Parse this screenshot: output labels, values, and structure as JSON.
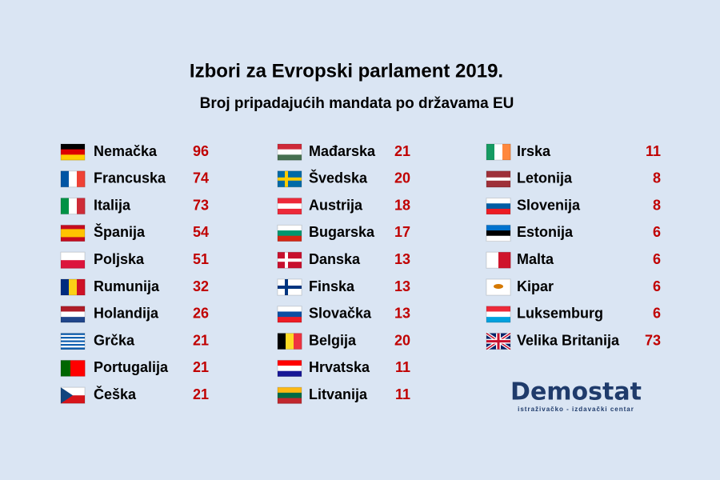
{
  "header": {
    "title": "Izbori za Evropski parlament 2019.",
    "subtitle": "Broj pripadajućih mandata po državama EU"
  },
  "columns": [
    {
      "rows": [
        {
          "name": "Nemačka",
          "seats": 96
        },
        {
          "name": "Francuska",
          "seats": 74
        },
        {
          "name": "Italija",
          "seats": 73
        },
        {
          "name": "Španija",
          "seats": 54
        },
        {
          "name": "Poljska",
          "seats": 51
        },
        {
          "name": "Rumunija",
          "seats": 32
        },
        {
          "name": "Holandija",
          "seats": 26
        },
        {
          "name": "Grčka",
          "seats": 21
        },
        {
          "name": "Portugalija",
          "seats": 21
        },
        {
          "name": "Češka",
          "seats": 21
        }
      ]
    },
    {
      "rows": [
        {
          "name": "Mađarska",
          "seats": 21
        },
        {
          "name": "Švedska",
          "seats": 20
        },
        {
          "name": "Austrija",
          "seats": 18
        },
        {
          "name": "Bugarska",
          "seats": 17
        },
        {
          "name": "Danska",
          "seats": 13
        },
        {
          "name": "Finska",
          "seats": 13
        },
        {
          "name": "Slovačka",
          "seats": 13
        },
        {
          "name": "Belgija",
          "seats": 20
        },
        {
          "name": "Hrvatska",
          "seats": 11
        },
        {
          "name": "Litvanija",
          "seats": 11
        }
      ]
    },
    {
      "rows": [
        {
          "name": "Irska",
          "seats": 11
        },
        {
          "name": "Letonija",
          "seats": 8
        },
        {
          "name": "Slovenija",
          "seats": 8
        },
        {
          "name": "Estonija",
          "seats": 6
        },
        {
          "name": "Malta",
          "seats": 6
        },
        {
          "name": "Kipar",
          "seats": 6
        },
        {
          "name": "Luksemburg",
          "seats": 6
        },
        {
          "name": "Velika Britanija",
          "seats": 73
        }
      ]
    }
  ],
  "logo": {
    "name": "Demostat",
    "tagline": "istraživačko - izdavački centar"
  }
}
